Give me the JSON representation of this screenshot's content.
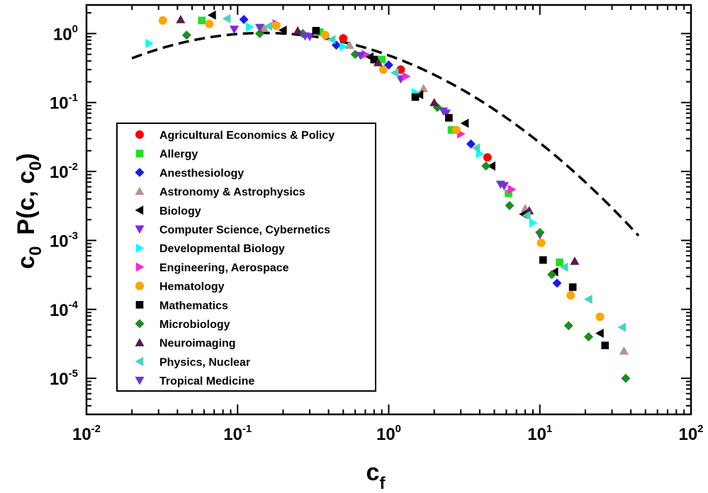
{
  "chart_data": {
    "type": "scatter",
    "scale": "log-log",
    "title": "",
    "xlabel": {
      "main": "c",
      "sub": "f"
    },
    "ylabel": {
      "prefix": "c",
      "prefix_sub": "0",
      "main": "P(c, c",
      "main_sub": "0",
      "close": ")"
    },
    "xlim": [
      0.01,
      100
    ],
    "ylim": [
      3e-06,
      2.6
    ],
    "x_ticks": [
      {
        "value": 0.01,
        "base": "10",
        "exp": "-2"
      },
      {
        "value": 0.1,
        "base": "10",
        "exp": "-1"
      },
      {
        "value": 1,
        "base": "10",
        "exp": "0"
      },
      {
        "value": 10,
        "base": "10",
        "exp": "1"
      },
      {
        "value": 100,
        "base": "10",
        "exp": "2"
      }
    ],
    "y_ticks": [
      {
        "value": 1e-05,
        "base": "10",
        "exp": "-5"
      },
      {
        "value": 0.0001,
        "base": "10",
        "exp": "-4"
      },
      {
        "value": 0.001,
        "base": "10",
        "exp": "-3"
      },
      {
        "value": 0.01,
        "base": "10",
        "exp": "-2"
      },
      {
        "value": 0.1,
        "base": "10",
        "exp": "-1"
      },
      {
        "value": 1,
        "base": "10",
        "exp": "0"
      }
    ],
    "legend_position": "left-center",
    "fit_curve": {
      "style": "dashed",
      "color": "#000000",
      "description": "lognormal fit",
      "x_range": [
        0.02,
        45
      ]
    },
    "series": [
      {
        "name": "Agricultural Economics & Policy",
        "marker": "circle",
        "color": "#ff0000",
        "points": [
          [
            0.5,
            0.85
          ],
          [
            1.2,
            0.3
          ],
          [
            4.5,
            0.016
          ]
        ]
      },
      {
        "name": "Allergy",
        "marker": "square",
        "color": "#22dd22",
        "points": [
          [
            0.058,
            1.55
          ],
          [
            0.35,
            1.05
          ],
          [
            0.9,
            0.42
          ],
          [
            2.6,
            0.04
          ],
          [
            6.2,
            0.0048
          ],
          [
            13.5,
            0.00048
          ]
        ]
      },
      {
        "name": "Anesthesiology",
        "marker": "diamond",
        "color": "#1a1aee",
        "points": [
          [
            0.11,
            1.6
          ],
          [
            0.45,
            0.68
          ],
          [
            1.0,
            0.35
          ],
          [
            3.5,
            0.025
          ],
          [
            13.0,
            0.00024
          ]
        ]
      },
      {
        "name": "Astronomy & Astrophysics",
        "marker": "triangle-up",
        "color": "#bc8f8f",
        "points": [
          [
            0.15,
            1.2
          ],
          [
            0.55,
            0.68
          ],
          [
            1.7,
            0.16
          ],
          [
            8.0,
            0.0029
          ],
          [
            36.0,
            2.5e-05
          ]
        ]
      },
      {
        "name": "Biology",
        "marker": "triangle-left",
        "color": "#000000",
        "points": [
          [
            0.068,
            1.85
          ],
          [
            0.2,
            1.12
          ],
          [
            0.75,
            0.46
          ],
          [
            1.6,
            0.13
          ],
          [
            3.2,
            0.05
          ],
          [
            4.8,
            0.012
          ],
          [
            7.8,
            0.0024
          ],
          [
            12.5,
            0.00035
          ],
          [
            25.0,
            4.5e-05
          ]
        ]
      },
      {
        "name": "Computer Science, Cybernetics",
        "marker": "triangle-down",
        "color": "#8822ee",
        "points": [
          [
            0.095,
            1.15
          ],
          [
            0.3,
            0.9
          ],
          [
            1.2,
            0.22
          ],
          [
            2.4,
            0.07
          ],
          [
            5.8,
            0.0062
          ],
          [
            10.0,
            0.0012
          ]
        ]
      },
      {
        "name": "Developmental Biology",
        "marker": "triangle-right",
        "color": "#00ffff",
        "points": [
          [
            0.026,
            0.72
          ],
          [
            0.12,
            1.25
          ],
          [
            0.5,
            0.65
          ],
          [
            1.5,
            0.14
          ],
          [
            4.0,
            0.018
          ],
          [
            9.0,
            0.0018
          ]
        ]
      },
      {
        "name": "Engineering, Aerospace",
        "marker": "triangle-right",
        "color": "#ff22dd",
        "points": [
          [
            0.18,
            1.4
          ],
          [
            0.7,
            0.5
          ],
          [
            1.3,
            0.24
          ],
          [
            3.0,
            0.035
          ],
          [
            6.5,
            0.0055
          ]
        ]
      },
      {
        "name": "Hematology",
        "marker": "circle",
        "color": "#ffa500",
        "points": [
          [
            0.032,
            1.55
          ],
          [
            0.065,
            1.38
          ],
          [
            0.18,
            1.3
          ],
          [
            0.38,
            0.95
          ],
          [
            0.92,
            0.3
          ],
          [
            2.8,
            0.04
          ],
          [
            10.2,
            0.00092
          ],
          [
            16.0,
            0.00016
          ],
          [
            25.0,
            7.8e-05
          ]
        ]
      },
      {
        "name": "Mathematics",
        "marker": "square",
        "color": "#000000",
        "points": [
          [
            0.33,
            1.1
          ],
          [
            0.8,
            0.42
          ],
          [
            1.5,
            0.12
          ],
          [
            2.5,
            0.06
          ],
          [
            10.5,
            0.00052
          ],
          [
            16.5,
            0.00021
          ],
          [
            27.0,
            3e-05
          ]
        ]
      },
      {
        "name": "Microbiology",
        "marker": "diamond",
        "color": "#1e8c1e",
        "points": [
          [
            0.046,
            0.95
          ],
          [
            0.14,
            1.0
          ],
          [
            0.27,
            1.0
          ],
          [
            0.6,
            0.5
          ],
          [
            2.1,
            0.085
          ],
          [
            4.4,
            0.012
          ],
          [
            6.3,
            0.0032
          ],
          [
            10.0,
            0.0013
          ],
          [
            12.0,
            0.00032
          ],
          [
            15.5,
            5.8e-05
          ],
          [
            21.0,
            4e-05
          ],
          [
            37.0,
            1e-05
          ]
        ]
      },
      {
        "name": "Neuroimaging",
        "marker": "triangle-up",
        "color": "#5a1a4a",
        "points": [
          [
            0.042,
            1.6
          ],
          [
            0.25,
            1.1
          ],
          [
            0.85,
            0.38
          ],
          [
            2.0,
            0.1
          ],
          [
            8.5,
            0.0027
          ],
          [
            17.0,
            0.0005
          ]
        ]
      },
      {
        "name": "Physics, Nuclear",
        "marker": "triangle-left",
        "color": "#44d4c4",
        "points": [
          [
            0.085,
            1.65
          ],
          [
            0.16,
            1.28
          ],
          [
            0.42,
            0.82
          ],
          [
            1.1,
            0.27
          ],
          [
            3.8,
            0.022
          ],
          [
            8.2,
            0.0023
          ],
          [
            14.5,
            0.00041
          ],
          [
            21.0,
            0.00014
          ],
          [
            35.0,
            5.5e-05
          ]
        ]
      },
      {
        "name": "Tropical Medicine",
        "marker": "triangle-down",
        "color": "#6a3acc",
        "points": [
          [
            0.14,
            1.22
          ],
          [
            0.28,
            0.92
          ],
          [
            0.65,
            0.48
          ],
          [
            2.3,
            0.075
          ],
          [
            5.5,
            0.0065
          ]
        ]
      }
    ]
  }
}
